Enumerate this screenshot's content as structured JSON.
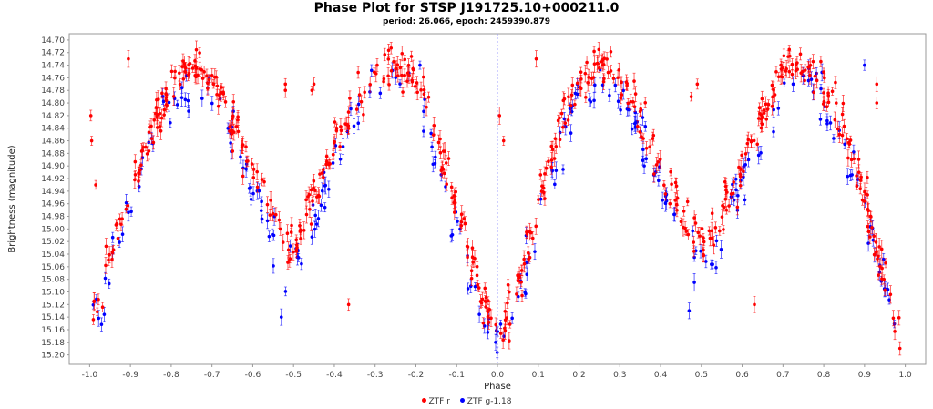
{
  "chart_data": {
    "type": "scatter",
    "title": "Phase Plot for STSP J191725.10+000211.0",
    "subtitle": "period: 26.066, epoch: 2459390.879",
    "xlabel": "Phase",
    "ylabel": "Brightness (magnitude)",
    "xlim": [
      -1.05,
      1.05
    ],
    "ylim": [
      15.215,
      14.69
    ],
    "y_inverted": true,
    "grid": false,
    "marker_line_at_x": 0.0,
    "legend_position": "bottom-center",
    "x_ticks": [
      "-1.0",
      "-0.9",
      "-0.8",
      "-0.7",
      "-0.6",
      "-0.5",
      "-0.4",
      "-0.3",
      "-0.2",
      "-0.1",
      "0.0",
      "0.1",
      "0.2",
      "0.3",
      "0.4",
      "0.5",
      "0.6",
      "0.7",
      "0.8",
      "0.9",
      "1.0"
    ],
    "y_ticks": [
      "14.70",
      "14.72",
      "14.74",
      "14.76",
      "14.78",
      "14.80",
      "14.82",
      "14.84",
      "14.86",
      "14.88",
      "14.90",
      "14.92",
      "14.94",
      "14.96",
      "14.98",
      "15.00",
      "15.02",
      "15.04",
      "15.06",
      "15.08",
      "15.10",
      "15.12",
      "15.14",
      "15.16",
      "15.18",
      "15.20"
    ],
    "series": [
      {
        "name": "ZTF r",
        "color": "#ff0000",
        "light_curve_x": [
          -1.0,
          -0.97,
          -0.94,
          -0.9,
          -0.86,
          -0.82,
          -0.78,
          -0.74,
          -0.7,
          -0.66,
          -0.62,
          -0.58,
          -0.54,
          -0.52,
          -0.49,
          -0.46,
          -0.42,
          -0.38,
          -0.34,
          -0.3,
          -0.26,
          -0.22,
          -0.18,
          -0.14,
          -0.1,
          -0.07,
          -0.04,
          -0.02,
          0.0,
          0.02,
          0.04,
          0.07,
          0.1,
          0.14,
          0.18,
          0.22,
          0.26,
          0.3,
          0.34,
          0.38,
          0.42,
          0.46,
          0.48,
          0.51,
          0.54,
          0.58,
          0.62,
          0.66,
          0.7,
          0.74,
          0.78,
          0.82,
          0.86,
          0.9,
          0.93,
          0.96,
          0.98,
          1.0
        ],
        "light_curve_y": [
          15.14,
          15.09,
          15.02,
          14.94,
          14.87,
          14.8,
          14.75,
          14.74,
          14.76,
          14.81,
          14.88,
          14.93,
          14.99,
          15.03,
          15.02,
          14.96,
          14.9,
          14.84,
          14.79,
          14.76,
          14.74,
          14.75,
          14.79,
          14.87,
          14.96,
          15.03,
          15.11,
          15.15,
          15.16,
          15.15,
          15.11,
          15.03,
          14.96,
          14.87,
          14.79,
          14.75,
          14.74,
          14.76,
          14.81,
          14.87,
          14.93,
          14.98,
          15.01,
          15.03,
          14.99,
          14.93,
          14.87,
          14.8,
          14.75,
          14.74,
          14.75,
          14.79,
          14.86,
          14.95,
          15.03,
          15.1,
          15.14,
          15.16
        ],
        "scatter_sd": 0.018
      },
      {
        "name": "ZTF g-1.18",
        "color": "#0000ff",
        "light_curve_x": [
          -1.0,
          -0.97,
          -0.94,
          -0.9,
          -0.86,
          -0.82,
          -0.78,
          -0.74,
          -0.7,
          -0.66,
          -0.62,
          -0.58,
          -0.54,
          -0.52,
          -0.49,
          -0.46,
          -0.42,
          -0.38,
          -0.34,
          -0.3,
          -0.26,
          -0.22,
          -0.18,
          -0.14,
          -0.1,
          -0.07,
          -0.04,
          -0.02,
          0.0,
          0.02,
          0.04,
          0.07,
          0.1,
          0.14,
          0.18,
          0.22,
          0.26,
          0.3,
          0.34,
          0.38,
          0.42,
          0.46,
          0.48,
          0.51,
          0.54,
          0.58,
          0.62,
          0.66,
          0.7,
          0.74,
          0.78,
          0.82,
          0.86,
          0.9,
          0.93,
          0.96,
          0.98,
          1.0
        ],
        "light_curve_y": [
          15.16,
          15.11,
          15.04,
          14.96,
          14.89,
          14.82,
          14.78,
          14.77,
          14.79,
          14.84,
          14.91,
          14.96,
          15.02,
          15.06,
          15.05,
          14.99,
          14.93,
          14.87,
          14.82,
          14.79,
          14.77,
          14.78,
          14.82,
          14.9,
          14.99,
          15.06,
          15.13,
          15.17,
          15.18,
          15.17,
          15.13,
          15.06,
          14.99,
          14.9,
          14.82,
          14.78,
          14.77,
          14.79,
          14.84,
          14.9,
          14.96,
          15.01,
          15.04,
          15.06,
          15.02,
          14.96,
          14.9,
          14.83,
          14.78,
          14.77,
          14.78,
          14.82,
          14.89,
          14.98,
          15.06,
          15.12,
          15.16,
          15.18
        ],
        "scatter_sd": 0.02
      }
    ],
    "outliers_r": [
      [
        -0.997,
        14.82
      ],
      [
        -0.995,
        14.86
      ],
      [
        -0.985,
        14.93
      ],
      [
        -0.905,
        14.73
      ],
      [
        -0.52,
        14.77
      ],
      [
        -0.52,
        14.78
      ],
      [
        -0.45,
        14.77
      ],
      [
        -0.455,
        14.78
      ],
      [
        -0.365,
        15.12
      ],
      [
        -0.295,
        14.74
      ],
      [
        0.005,
        14.82
      ],
      [
        0.015,
        14.86
      ],
      [
        0.095,
        14.73
      ],
      [
        0.475,
        14.79
      ],
      [
        0.49,
        14.77
      ],
      [
        0.63,
        15.12
      ],
      [
        0.675,
        14.79
      ],
      [
        0.695,
        14.74
      ],
      [
        0.93,
        14.77
      ],
      [
        0.93,
        14.8
      ]
    ],
    "outliers_g": [
      [
        -0.53,
        15.14
      ],
      [
        -0.19,
        14.74
      ],
      [
        0.47,
        15.13
      ],
      [
        0.725,
        14.77
      ],
      [
        0.9,
        14.74
      ]
    ]
  },
  "legend": {
    "r_label": "ZTF r",
    "g_label": "ZTF g-1.18"
  }
}
